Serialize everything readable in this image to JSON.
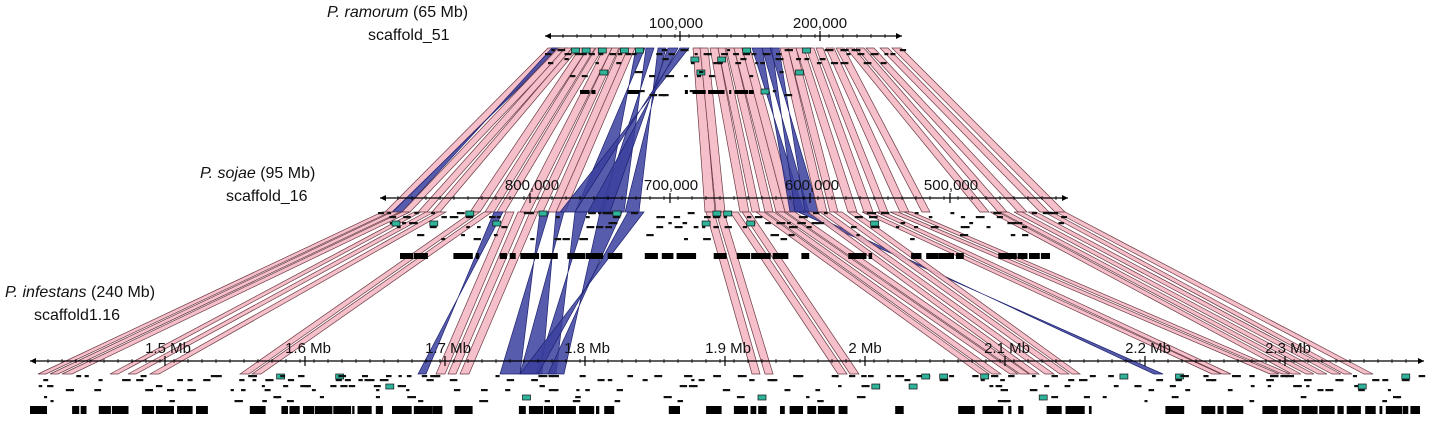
{
  "genomes": [
    {
      "id": "ramorum",
      "species": "P. ramorum",
      "size": "(65 Mb)",
      "scaffold": "scaffold_51",
      "ticks": [
        "100,000",
        "200,000"
      ]
    },
    {
      "id": "sojae",
      "species": "P. sojae",
      "size": "(95 Mb)",
      "scaffold": "scaffold_16",
      "ticks": [
        "800,000",
        "700,000",
        "600,000",
        "500,000"
      ]
    },
    {
      "id": "infestans",
      "species": "P. infestans",
      "size": "(240 Mb)",
      "scaffold": "scaffold1.16",
      "ticks": [
        "1.5 Mb",
        "1.6 Mb",
        "1.7 Mb",
        "1.8 Mb",
        "1.9 Mb",
        "2 Mb",
        "2.1 Mb",
        "2.2 Mb",
        "2.3 Mb"
      ]
    }
  ],
  "colors": {
    "forward_synteny": "#f4b9c4",
    "forward_edge": "#6b3a44",
    "inverted_synteny": "#3a3f9e",
    "gene_highlight": "#2fb39a",
    "axis": "#000000"
  }
}
